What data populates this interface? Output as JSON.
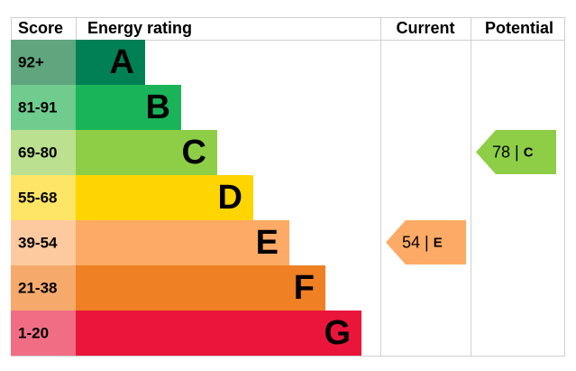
{
  "header": {
    "score": "Score",
    "rating": "Energy rating",
    "current": "Current",
    "potential": "Potential"
  },
  "rows": [
    {
      "score": "92+",
      "letter": "A",
      "color": "#008054",
      "light": "#5fa67f"
    },
    {
      "score": "81-91",
      "letter": "B",
      "color": "#19b459",
      "light": "#6fcb8e"
    },
    {
      "score": "69-80",
      "letter": "C",
      "color": "#8dce46",
      "light": "#bbe08f"
    },
    {
      "score": "55-68",
      "letter": "D",
      "color": "#ffd500",
      "light": "#ffe566"
    },
    {
      "score": "39-54",
      "letter": "E",
      "color": "#fcaa65",
      "light": "#fdcaa0"
    },
    {
      "score": "21-38",
      "letter": "F",
      "color": "#ef8023",
      "light": "#f5aa6c"
    },
    {
      "score": "1-20",
      "letter": "G",
      "color": "#e9153b",
      "light": "#f06d84"
    }
  ],
  "current": {
    "value": 54,
    "letter": "E"
  },
  "potential": {
    "value": 78,
    "letter": "C"
  }
}
